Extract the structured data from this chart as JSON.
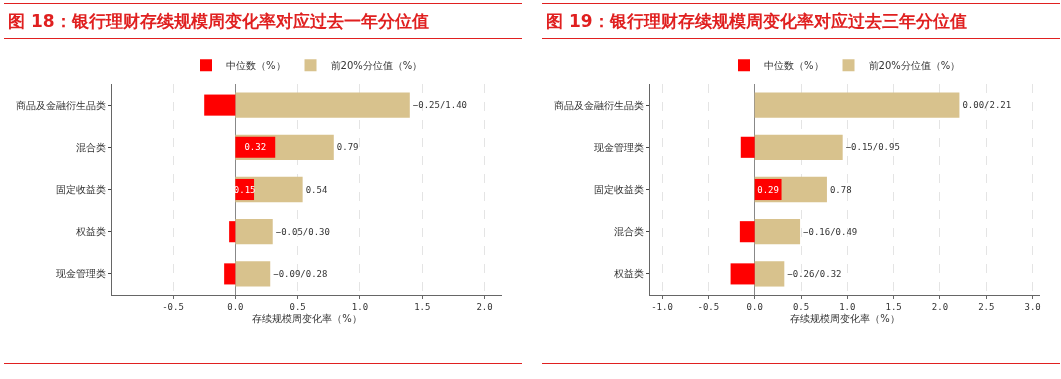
{
  "chart_data": [
    {
      "type": "bar",
      "orientation": "horizontal",
      "title": "图 18：银行理财存续规模周变化率对应过去一年分位值",
      "xlabel": "存续规模周变化率（%）",
      "categories": [
        "商品及金融衍生品类",
        "混合类",
        "固定收益类",
        "权益类",
        "现金管理类"
      ],
      "series": [
        {
          "name": "中位数（%）",
          "color": "#ff0000",
          "values": [
            -0.25,
            0.32,
            0.15,
            -0.05,
            -0.09
          ],
          "value_labels": [
            null,
            "0.32",
            "0.15",
            null,
            null
          ]
        },
        {
          "name": "前20%分位值（%）",
          "color": "#d8c28d",
          "values": [
            1.4,
            0.79,
            0.54,
            0.3,
            0.28
          ],
          "value_labels": [
            "−0.25/1.40",
            "0.79",
            "0.54",
            "−0.05/0.30",
            "−0.09/0.28"
          ]
        }
      ],
      "xlim": [
        -0.99,
        2.14
      ],
      "xticks": [
        -0.5,
        {
          "value": 0,
          "label": "0.0"
        },
        0.5,
        {
          "value": 1,
          "label": "1.0"
        },
        1.5,
        {
          "value": 2,
          "label": "2.0"
        }
      ],
      "grid": "x",
      "legend": "top"
    },
    {
      "type": "bar",
      "orientation": "horizontal",
      "title": "图 19：银行理财存续规模周变化率对应过去三年分位值",
      "xlabel": "存续规模周变化率（%）",
      "categories": [
        "商品及金融衍生品类",
        "现金管理类",
        "固定收益类",
        "混合类",
        "权益类"
      ],
      "series": [
        {
          "name": "中位数（%）",
          "color": "#ff0000",
          "values": [
            0.0,
            -0.15,
            0.29,
            -0.16,
            -0.26
          ],
          "value_labels": [
            null,
            null,
            "0.29",
            null,
            null
          ]
        },
        {
          "name": "前20%分位值（%）",
          "color": "#d8c28d",
          "values": [
            2.21,
            0.95,
            0.78,
            0.49,
            0.32
          ],
          "value_labels": [
            "0.00/2.21",
            "−0.15/0.95",
            "0.78",
            "−0.16/0.49",
            "−0.26/0.32"
          ]
        }
      ],
      "xlim": [
        -1.13,
        3.08
      ],
      "xticks": [
        {
          "value": -1,
          "label": "-1.0"
        },
        -0.5,
        {
          "value": 0,
          "label": "0.0"
        },
        0.5,
        {
          "value": 1,
          "label": "1.0"
        },
        1.5,
        {
          "value": 2,
          "label": "2.0"
        },
        2.5,
        {
          "value": 3,
          "label": "3.0"
        }
      ],
      "grid": "x",
      "legend": "top"
    }
  ]
}
